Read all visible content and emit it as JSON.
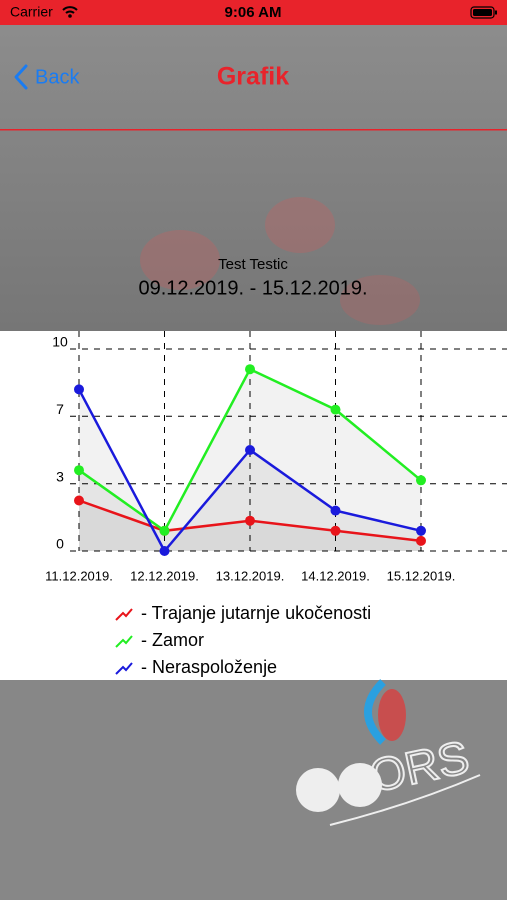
{
  "status_bar": {
    "carrier": "Carrier",
    "time": "9:06 AM"
  },
  "nav": {
    "back": "Back",
    "title": "Grafik"
  },
  "header": {
    "name": "Test Testic",
    "period": "09.12.2019. - 15.12.2019."
  },
  "chart_data": {
    "type": "line",
    "categories": [
      "11.12.2019.",
      "12.12.2019.",
      "13.12.2019.",
      "14.12.2019.",
      "15.12.2019."
    ],
    "series": [
      {
        "name": "- Trajanje jutarnje ukočenosti",
        "color": "#e8141a",
        "values": [
          2.5,
          1,
          1.5,
          1,
          0.5
        ]
      },
      {
        "name": "- Zamor",
        "color": "#22ee22",
        "values": [
          4,
          1,
          9,
          7,
          3.5
        ]
      },
      {
        "name": "- Neraspoloženje",
        "color": "#1a1adc",
        "values": [
          8,
          0,
          5,
          2,
          1
        ]
      }
    ],
    "ylim": [
      0,
      10
    ],
    "yticks": [
      0,
      {
        "value": 3.33,
        "label": "3"
      },
      {
        "value": 6.67,
        "label": "7"
      },
      10
    ],
    "grid": true
  },
  "logo": {
    "text": "ORS"
  }
}
